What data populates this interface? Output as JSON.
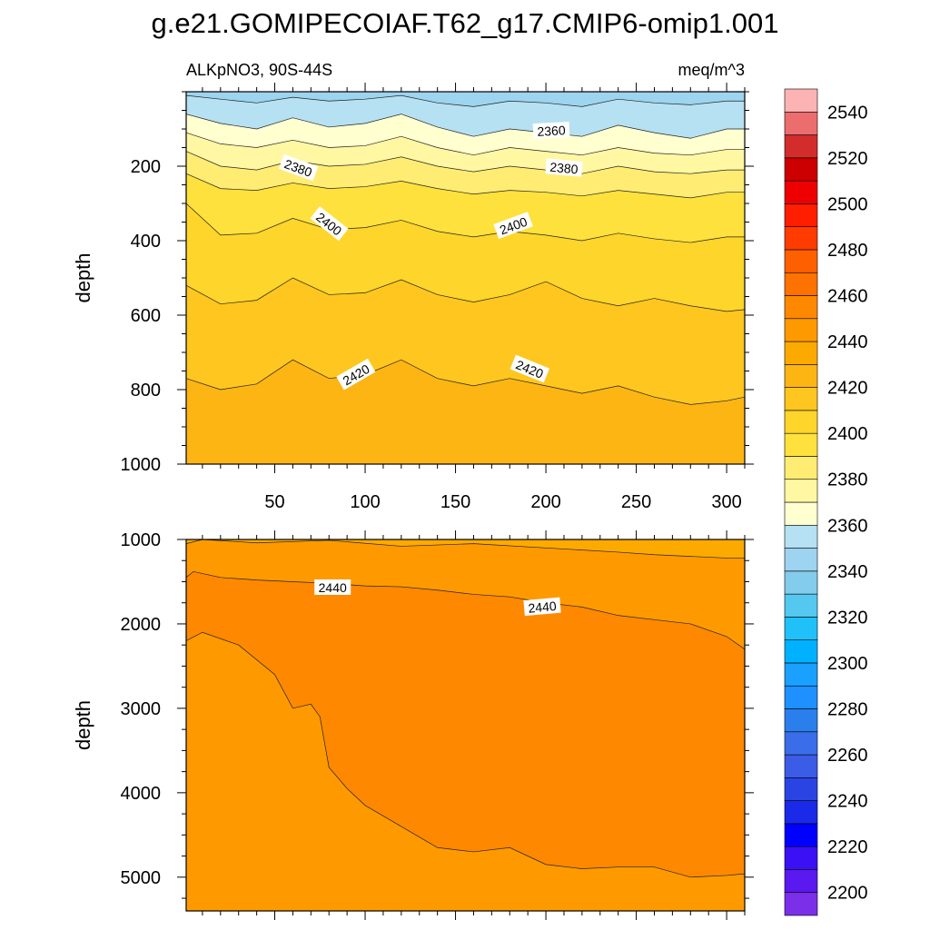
{
  "title": "g.e21.GOMIPECOIAF.T62_g17.CMIP6-omip1.001",
  "subtitle_left": "ALKpNO3, 90S-44S",
  "subtitle_right": "meq/m^3",
  "chart_data": {
    "type": "contour",
    "variable": "ALKpNO3",
    "region": "90S-44S",
    "units": "meq/m^3",
    "x_range": [
      1,
      310
    ],
    "x_ticks": [
      50,
      100,
      150,
      200,
      250,
      300
    ],
    "levels": [
      2200,
      2210,
      2220,
      2230,
      2240,
      2250,
      2260,
      2270,
      2280,
      2290,
      2300,
      2310,
      2320,
      2330,
      2340,
      2350,
      2360,
      2370,
      2380,
      2390,
      2400,
      2410,
      2420,
      2430,
      2440,
      2450,
      2460,
      2470,
      2480,
      2490,
      2500,
      2510,
      2520,
      2530,
      2540,
      2550
    ],
    "colors": [
      "#7b2fe9",
      "#5a19ee",
      "#3b10f5",
      "#0000ff",
      "#1a2ae8",
      "#2a44e4",
      "#3a5ce6",
      "#3a6ee8",
      "#2b7fec",
      "#1e90ff",
      "#1aa0ff",
      "#00b1ff",
      "#1fc1f8",
      "#55c8f0",
      "#84ccec",
      "#9dd4ef",
      "#b5e1f2",
      "#ffffd0",
      "#fff7a2",
      "#ffec73",
      "#ffe13d",
      "#fed52a",
      "#fec61f",
      "#fdb514",
      "#fdaa00",
      "#fe9a00",
      "#fe8800",
      "#fd7200",
      "#fe6000",
      "#ff3c00",
      "#ff1e00",
      "#ee0000",
      "#cc0000",
      "#d22c2c",
      "#ec6d6d",
      "#fbb3b3"
    ],
    "colorbar_ticks": [
      2200,
      2220,
      2240,
      2260,
      2280,
      2300,
      2320,
      2340,
      2360,
      2380,
      2400,
      2420,
      2440,
      2460,
      2480,
      2500,
      2520,
      2540
    ],
    "panels": [
      {
        "name": "upper",
        "ylabel": "depth",
        "y_range": [
          0,
          1000
        ],
        "y_ticks": [
          200,
          400,
          600,
          800,
          1000
        ],
        "base_level": 2430,
        "contours": [
          {
            "level": 2350,
            "x": [
              1,
              20,
              40,
              60,
              80,
              100,
              120,
              140,
              160,
              180,
              200,
              220,
              240,
              260,
              280,
              300,
              310
            ],
            "y": [
              10,
              20,
              30,
              15,
              25,
              20,
              10,
              30,
              40,
              25,
              30,
              40,
              20,
              30,
              35,
              25,
              25
            ]
          },
          {
            "level": 2360,
            "x": [
              1,
              20,
              40,
              60,
              80,
              100,
              120,
              140,
              160,
              180,
              200,
              220,
              240,
              260,
              280,
              300,
              310
            ],
            "y": [
              60,
              85,
              100,
              70,
              95,
              85,
              60,
              95,
              120,
              100,
              110,
              120,
              90,
              110,
              125,
              100,
              100
            ]
          },
          {
            "level": 2370,
            "x": [
              1,
              20,
              40,
              60,
              80,
              100,
              120,
              140,
              160,
              180,
              200,
              220,
              240,
              260,
              280,
              300,
              310
            ],
            "y": [
              110,
              140,
              150,
              130,
              150,
              145,
              120,
              150,
              170,
              150,
              160,
              170,
              150,
              165,
              170,
              155,
              155
            ]
          },
          {
            "level": 2380,
            "x": [
              1,
              20,
              40,
              60,
              80,
              100,
              120,
              140,
              160,
              180,
              200,
              220,
              240,
              260,
              280,
              300,
              310
            ],
            "y": [
              160,
              200,
              210,
              185,
              200,
              195,
              175,
              200,
              215,
              200,
              210,
              220,
              200,
              215,
              220,
              210,
              210
            ]
          },
          {
            "level": 2390,
            "x": [
              1,
              20,
              40,
              60,
              80,
              100,
              120,
              140,
              160,
              180,
              200,
              220,
              240,
              260,
              280,
              300,
              310
            ],
            "y": [
              220,
              260,
              265,
              245,
              260,
              255,
              240,
              260,
              275,
              265,
              270,
              280,
              265,
              275,
              285,
              270,
              270
            ]
          },
          {
            "level": 2400,
            "x": [
              1,
              20,
              40,
              60,
              80,
              100,
              120,
              140,
              160,
              180,
              200,
              220,
              240,
              260,
              280,
              300,
              310
            ],
            "y": [
              300,
              385,
              380,
              340,
              370,
              365,
              345,
              375,
              390,
              375,
              385,
              400,
              380,
              395,
              405,
              390,
              390
            ]
          },
          {
            "level": 2410,
            "x": [
              1,
              20,
              40,
              60,
              80,
              100,
              120,
              140,
              160,
              180,
              200,
              220,
              240,
              260,
              280,
              300,
              310
            ],
            "y": [
              520,
              570,
              560,
              500,
              545,
              540,
              505,
              545,
              565,
              545,
              510,
              555,
              575,
              555,
              575,
              590,
              585
            ]
          },
          {
            "level": 2420,
            "x": [
              1,
              20,
              40,
              60,
              80,
              100,
              120,
              140,
              160,
              180,
              200,
              220,
              240,
              260,
              280,
              300,
              310
            ],
            "y": [
              770,
              800,
              785,
              720,
              770,
              760,
              720,
              770,
              790,
              770,
              790,
              810,
              790,
              820,
              840,
              830,
              820
            ]
          }
        ],
        "labels": [
          {
            "text": "2360",
            "x": 203,
            "y": 105,
            "angle": -3
          },
          {
            "text": "2380",
            "x": 63,
            "y": 205,
            "angle": 20
          },
          {
            "text": "2380",
            "x": 210,
            "y": 205,
            "angle": 5
          },
          {
            "text": "2400",
            "x": 80,
            "y": 355,
            "angle": 38
          },
          {
            "text": "2400",
            "x": 182,
            "y": 360,
            "angle": -20
          },
          {
            "text": "2420",
            "x": 95,
            "y": 760,
            "angle": -30
          },
          {
            "text": "2420",
            "x": 191,
            "y": 745,
            "angle": 22
          }
        ]
      },
      {
        "name": "lower",
        "ylabel": "depth",
        "y_range": [
          1000,
          5400
        ],
        "y_ticks": [
          1000,
          2000,
          3000,
          4000,
          5000
        ],
        "base_level": 2450,
        "contours": [
          {
            "level": 2440,
            "x": [
              1,
              10,
              40,
              80,
              120,
              160,
              200,
              240,
              260,
              280,
              300,
              310
            ],
            "y": [
              1050,
              1000,
              1040,
              1010,
              1080,
              1050,
              1100,
              1150,
              1180,
              1200,
              1220,
              1220
            ]
          },
          {
            "level": 2450,
            "x": [
              1,
              5,
              20,
              40,
              60,
              80,
              100,
              120,
              140,
              160,
              180,
              200,
              220,
              240,
              260,
              280,
              300,
              310
            ],
            "y": [
              1450,
              1380,
              1450,
              1480,
              1500,
              1520,
              1550,
              1560,
              1600,
              1650,
              1680,
              1750,
              1800,
              1900,
              1950,
              2000,
              2150,
              2300
            ]
          },
          {
            "level": 2460,
            "x": [
              1,
              10,
              30,
              50,
              60,
              70,
              75,
              80,
              90,
              100,
              120,
              140,
              160,
              180,
              200,
              220,
              240,
              260,
              280,
              300,
              310
            ],
            "y": [
              2200,
              2100,
              2250,
              2600,
              3000,
              2950,
              3100,
              3700,
              3950,
              4150,
              4400,
              4650,
              4700,
              4650,
              4850,
              4900,
              4880,
              4880,
              5000,
              4980,
              4960
            ]
          }
        ],
        "labels": [
          {
            "text": "2440",
            "x": 82,
            "y": 1570,
            "angle": 0
          },
          {
            "text": "2440",
            "x": 198,
            "y": 1800,
            "angle": -5
          }
        ]
      }
    ]
  }
}
